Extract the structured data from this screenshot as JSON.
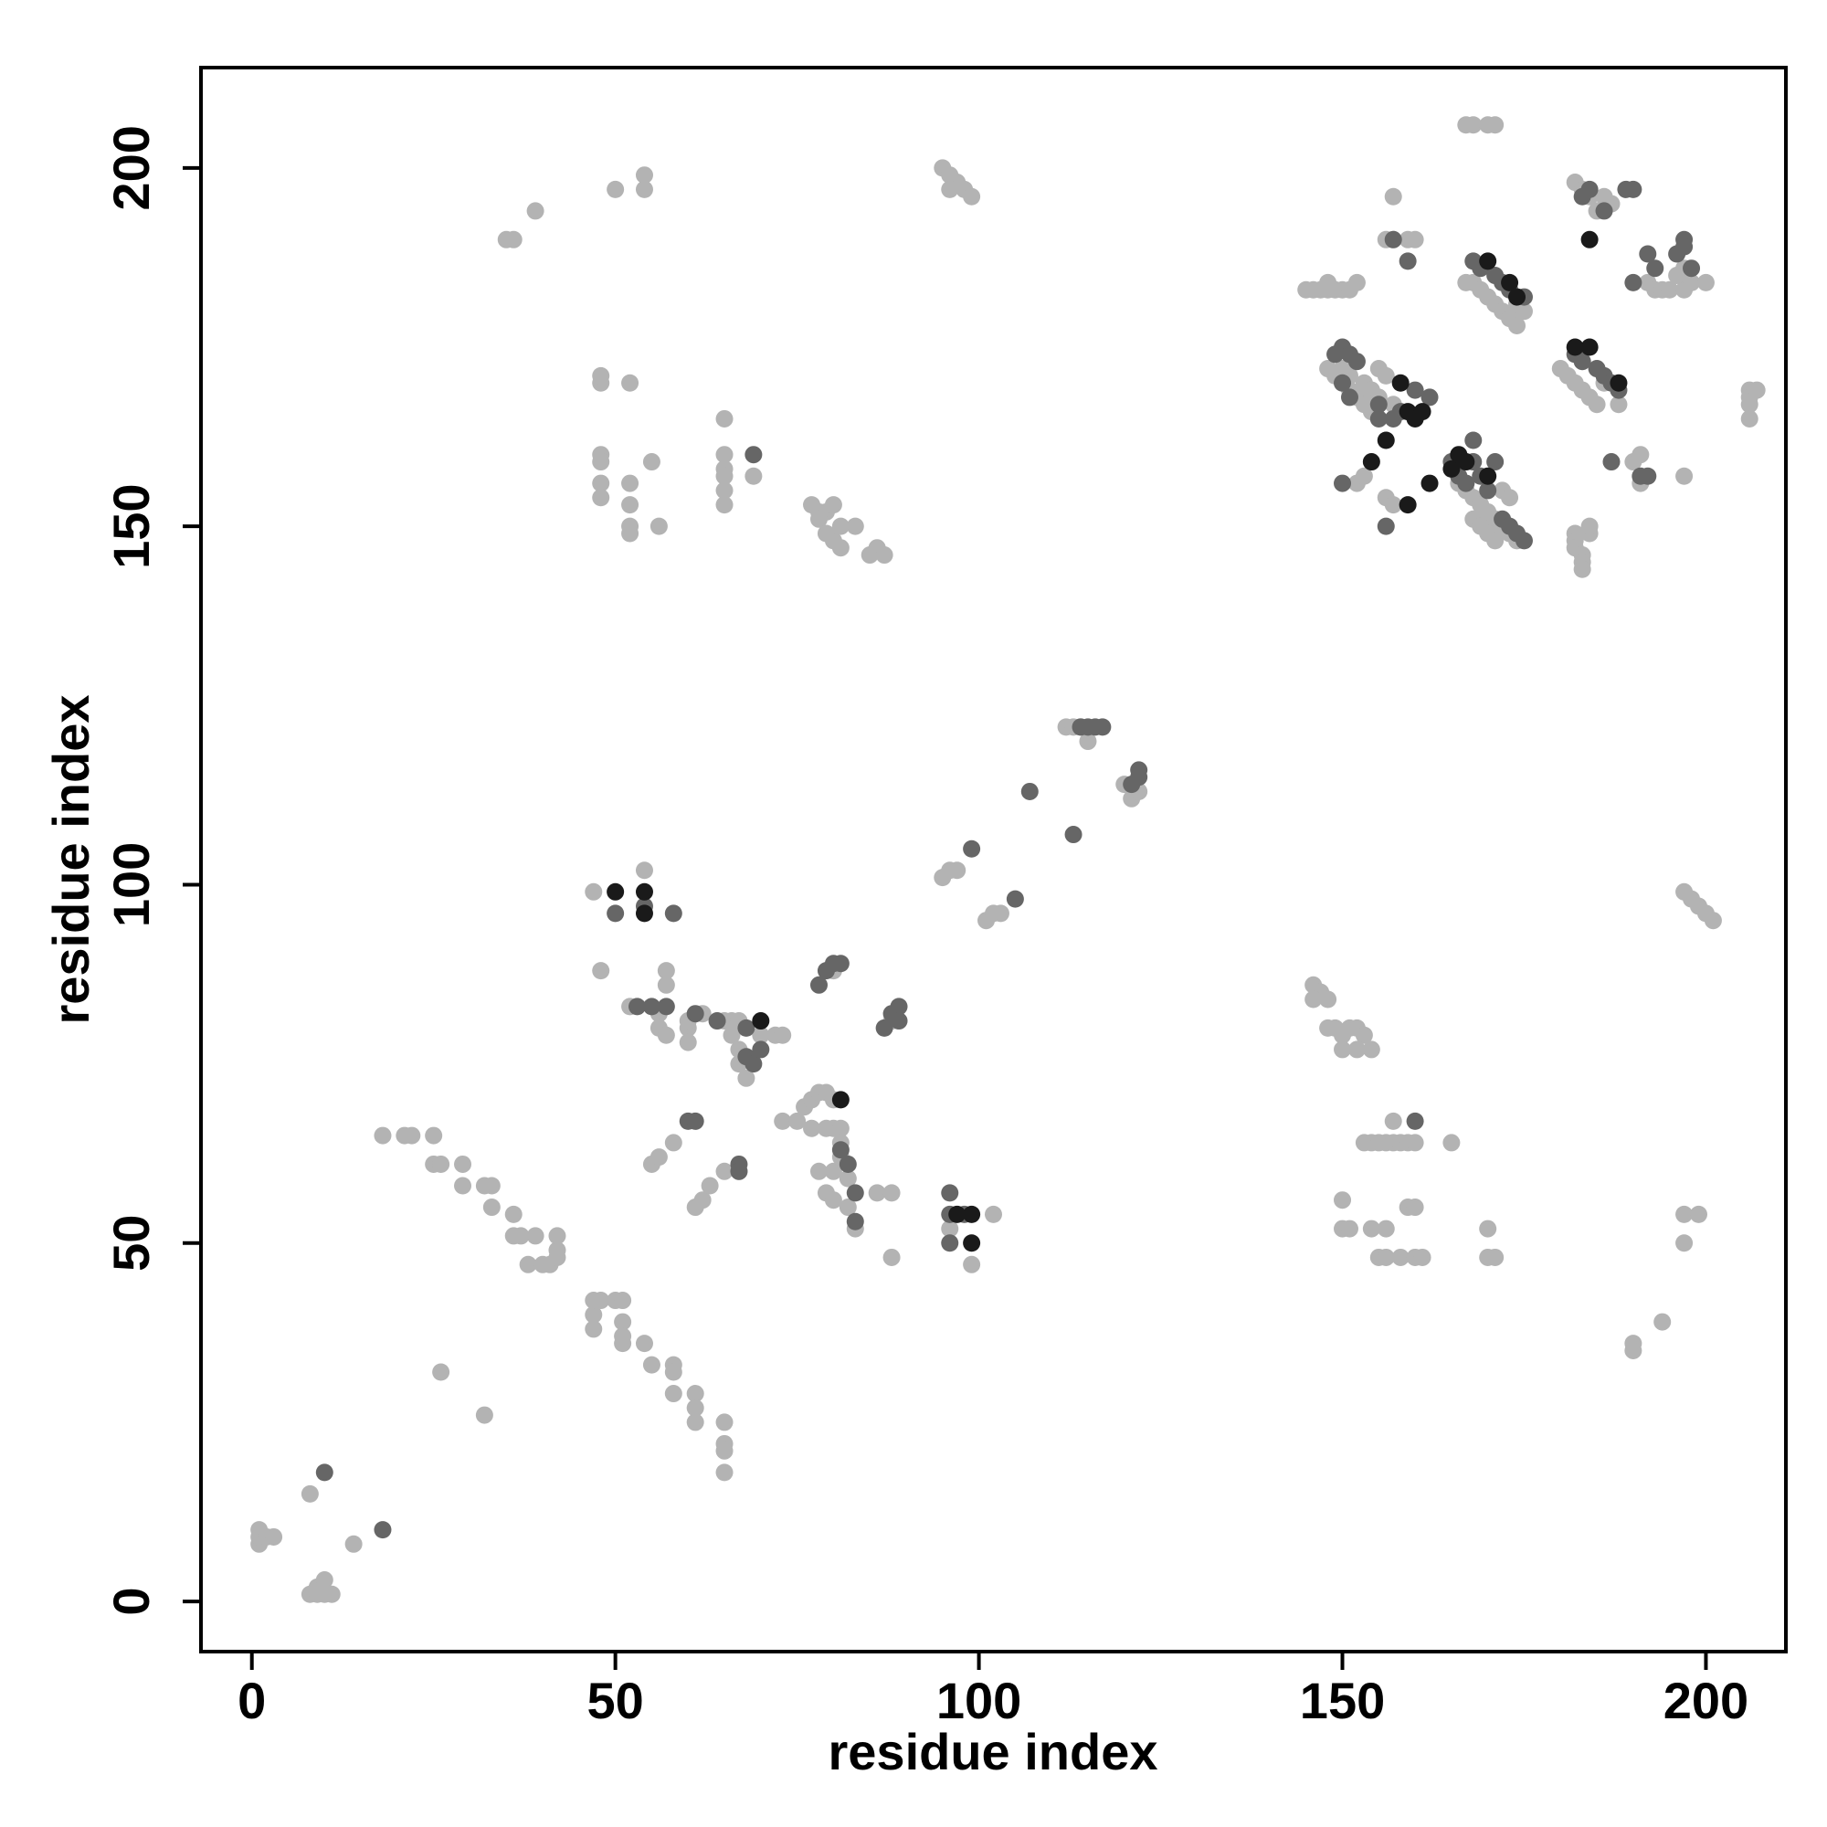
{
  "chart_data": {
    "type": "scatter",
    "xlabel": "residue index",
    "ylabel": "residue index",
    "xlim": [
      -7,
      211
    ],
    "ylim": [
      -7,
      214
    ],
    "xticks": [
      0,
      50,
      100,
      150,
      200
    ],
    "yticks": [
      0,
      50,
      100,
      150,
      200
    ],
    "series": [
      {
        "color": "#b3b3b3",
        "x": [
          1,
          1,
          1,
          2,
          3,
          8,
          9,
          10,
          11,
          9,
          10,
          8,
          14,
          26,
          32,
          18,
          21,
          22,
          25,
          25,
          26,
          29,
          29,
          32,
          33,
          33,
          36,
          36,
          37,
          39,
          38,
          40,
          41,
          42,
          42,
          42,
          47,
          47,
          47,
          48,
          50,
          51,
          51,
          51,
          51,
          54,
          55,
          58,
          58,
          58,
          61,
          61,
          61,
          65,
          65,
          65,
          65,
          47,
          48,
          54,
          52,
          57,
          57,
          56,
          56,
          57,
          60,
          60,
          60,
          62,
          65,
          66,
          67,
          66,
          67,
          67,
          68,
          70,
          72,
          73,
          55,
          56,
          58,
          61,
          62,
          63,
          65,
          67,
          73,
          75,
          76,
          77,
          78,
          79,
          80,
          77,
          79,
          80,
          81,
          81,
          78,
          80,
          79,
          80,
          82,
          83,
          86,
          88,
          88,
          82,
          81,
          80,
          88,
          99,
          102,
          96,
          95,
          96,
          97,
          101,
          102,
          103,
          112,
          113,
          114,
          115,
          120,
          121,
          122,
          35,
          36,
          39,
          50,
          54,
          54,
          95,
          96,
          97,
          98,
          99,
          96,
          48,
          48,
          52,
          65,
          48,
          48,
          48,
          48,
          52,
          55,
          52,
          52,
          52,
          56,
          65,
          65,
          65,
          65,
          65,
          77,
          78,
          79,
          80,
          81,
          80,
          81,
          83,
          85,
          86,
          87,
          78,
          79,
          69,
          146,
          147,
          146,
          148,
          148,
          149,
          150,
          151,
          152,
          153,
          150,
          152,
          154,
          153,
          154,
          155,
          156,
          157,
          158,
          159,
          160,
          157,
          165,
          150,
          151,
          150,
          154,
          155,
          156,
          158,
          160,
          161,
          156,
          159,
          160,
          170,
          170,
          171,
          197,
          198,
          199,
          200,
          201,
          197,
          199,
          197,
          190,
          190,
          194,
          167,
          168,
          170,
          171,
          157,
          156,
          157,
          159,
          160,
          182,
          183,
          184,
          185,
          186,
          187,
          145,
          146,
          147,
          148,
          149,
          150,
          151,
          152,
          148,
          167,
          168,
          169,
          170,
          171,
          172,
          173,
          174,
          175,
          174,
          192,
          193,
          194,
          195,
          197,
          198,
          200,
          196,
          197,
          206,
          206,
          206,
          206,
          207,
          148,
          149,
          150,
          151,
          152,
          153,
          154,
          150,
          151,
          153,
          154,
          155,
          156,
          155,
          157,
          158,
          180,
          181,
          182,
          183,
          184,
          185,
          186,
          188,
          166,
          167,
          168,
          169,
          170,
          171,
          172,
          173,
          174,
          172,
          173,
          168,
          169,
          170,
          171,
          182,
          182,
          182,
          183,
          183,
          183,
          184,
          184,
          190,
          191,
          191,
          197,
          156,
          157,
          152,
          153
        ],
        "values": [
          8,
          9,
          10,
          9,
          9,
          1,
          1,
          1,
          1,
          2,
          3,
          15,
          8,
          32,
          26,
          65,
          65,
          65,
          65,
          61,
          61,
          61,
          58,
          58,
          58,
          55,
          54,
          51,
          51,
          51,
          47,
          47,
          47,
          49,
          51,
          48,
          38,
          40,
          42,
          42,
          42,
          42,
          39,
          37,
          36,
          36,
          33,
          33,
          32,
          29,
          29,
          27,
          25,
          25,
          22,
          21,
          18,
          99,
          88,
          102,
          83,
          88,
          86,
          82,
          80,
          79,
          80,
          78,
          81,
          82,
          81,
          81,
          81,
          79,
          77,
          75,
          73,
          79,
          79,
          79,
          61,
          62,
          64,
          55,
          56,
          58,
          60,
          60,
          67,
          67,
          69,
          70,
          71,
          71,
          70,
          66,
          66,
          66,
          66,
          64,
          60,
          60,
          57,
          56,
          55,
          52,
          57,
          57,
          48,
          59,
          62,
          88,
          81,
          47,
          54,
          52,
          101,
          102,
          102,
          95,
          96,
          96,
          122,
          122,
          122,
          120,
          114,
          112,
          113,
          190,
          190,
          194,
          197,
          199,
          197,
          200,
          199,
          198,
          197,
          196,
          197,
          170,
          171,
          170,
          165,
          160,
          159,
          156,
          154,
          156,
          159,
          153,
          150,
          149,
          150,
          160,
          158,
          157,
          155,
          153,
          153,
          152,
          152,
          153,
          150,
          148,
          147,
          150,
          146,
          147,
          146,
          151,
          149,
          157,
          86,
          85,
          84,
          84,
          80,
          80,
          79,
          80,
          80,
          79,
          77,
          77,
          77,
          64,
          64,
          64,
          64,
          64,
          64,
          64,
          64,
          67,
          64,
          52,
          52,
          56,
          52,
          48,
          48,
          48,
          48,
          48,
          52,
          55,
          55,
          52,
          48,
          48,
          99,
          98,
          97,
          96,
          95,
          54,
          54,
          50,
          36,
          35,
          39,
          206,
          206,
          206,
          206,
          196,
          190,
          190,
          190,
          190,
          198,
          197,
          196,
          194,
          196,
          195,
          183,
          183,
          183,
          183,
          183,
          183,
          183,
          184,
          184,
          184,
          184,
          183,
          182,
          181,
          180,
          179,
          178,
          180,
          181,
          184,
          183,
          183,
          183,
          183,
          184,
          184,
          185,
          186,
          169,
          168,
          167,
          165,
          169,
          172,
          171,
          170,
          169,
          168,
          167,
          166,
          172,
          171,
          170,
          169,
          172,
          171,
          168,
          167,
          166,
          172,
          171,
          170,
          169,
          168,
          167,
          170,
          167,
          156,
          155,
          154,
          153,
          152,
          151,
          150,
          149,
          148,
          155,
          154,
          151,
          150,
          149,
          148,
          149,
          148,
          147,
          146,
          145,
          144,
          149,
          150,
          159,
          160,
          156,
          157,
          154,
          153,
          156,
          157
        ]
      },
      {
        "color": "#666666",
        "x": [
          10,
          18,
          50,
          53,
          54,
          58,
          57,
          55,
          61,
          64,
          68,
          68,
          69,
          70,
          60,
          61,
          67,
          67,
          81,
          82,
          83,
          83,
          78,
          79,
          80,
          81,
          87,
          88,
          89,
          89,
          96,
          96,
          98,
          96,
          99,
          105,
          107,
          113,
          114,
          115,
          116,
          117,
          121,
          122,
          122,
          69,
          160,
          157,
          159,
          183,
          184,
          186,
          189,
          190,
          168,
          169,
          171,
          172,
          173,
          175,
          192,
          193,
          196,
          197,
          197,
          198,
          190,
          149,
          150,
          151,
          152,
          150,
          151,
          155,
          155,
          157,
          158,
          160,
          162,
          182,
          183,
          185,
          186,
          187,
          188,
          187,
          150,
          165,
          166,
          167,
          168,
          168,
          169,
          170,
          171,
          172,
          173,
          174,
          175,
          191,
          192,
          156
        ],
        "values": [
          18,
          10,
          96,
          83,
          97,
          96,
          83,
          83,
          82,
          81,
          80,
          76,
          75,
          77,
          67,
          67,
          61,
          60,
          63,
          61,
          57,
          53,
          86,
          88,
          89,
          89,
          80,
          82,
          83,
          81,
          57,
          54,
          54,
          50,
          105,
          98,
          113,
          107,
          122,
          122,
          122,
          122,
          114,
          115,
          116,
          160,
          67,
          190,
          187,
          196,
          197,
          194,
          197,
          197,
          187,
          186,
          185,
          184,
          183,
          182,
          188,
          186,
          188,
          190,
          189,
          186,
          184,
          174,
          175,
          174,
          173,
          170,
          168,
          167,
          165,
          165,
          166,
          169,
          168,
          174,
          173,
          172,
          171,
          170,
          169,
          159,
          156,
          159,
          157,
          156,
          162,
          159,
          157,
          155,
          159,
          151,
          150,
          149,
          148,
          157,
          157,
          150
        ]
      },
      {
        "color": "#1a1a1a",
        "x": [
          50,
          54,
          54,
          70,
          81,
          99,
          99,
          97,
          184,
          173,
          170,
          174,
          182,
          184,
          188,
          158,
          159,
          160,
          161,
          156,
          154,
          159,
          162,
          165,
          166,
          167,
          170
        ],
        "values": [
          99,
          99,
          96,
          81,
          70,
          54,
          50,
          54,
          190,
          184,
          187,
          182,
          175,
          175,
          170,
          170,
          166,
          165,
          166,
          162,
          159,
          153,
          156,
          158,
          160,
          159,
          157
        ]
      }
    ]
  }
}
